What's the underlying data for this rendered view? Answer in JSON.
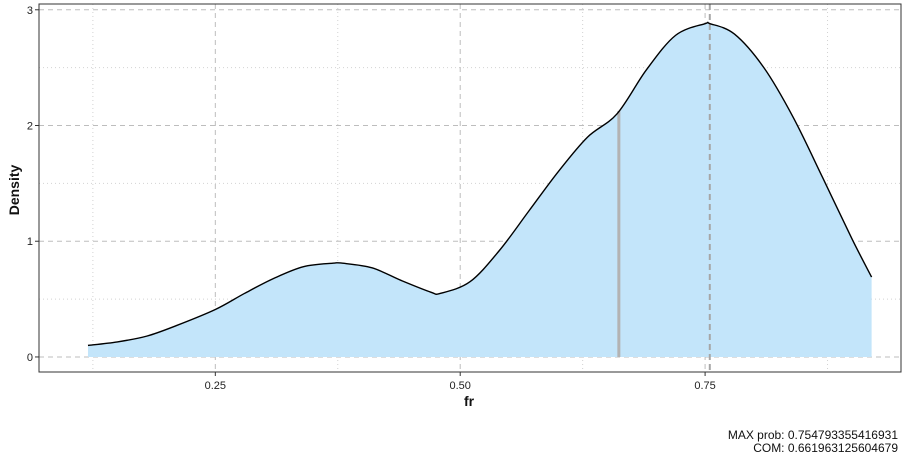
{
  "chart_data": {
    "type": "area",
    "xlabel": "fr",
    "ylabel": "Density",
    "xlim": [
      0.07,
      0.95
    ],
    "ylim": [
      -0.13,
      3.05
    ],
    "x_ticks": [
      0.25,
      0.5,
      0.75
    ],
    "x_tick_labels": [
      "0.25",
      "0.50",
      "0.75"
    ],
    "y_ticks": [
      0,
      1,
      2,
      3
    ],
    "y_tick_labels": [
      "0",
      "1",
      "2",
      "3"
    ],
    "x_minor_ticks": [
      0.125,
      0.375,
      0.625,
      0.875
    ],
    "y_minor_ticks": [
      0.5,
      1.5,
      2.5
    ],
    "grid": true,
    "fill_color": "#c3e5fa",
    "line_color": "#000000",
    "series": [
      {
        "x": [
          0.12,
          0.15,
          0.18,
          0.21,
          0.25,
          0.28,
          0.31,
          0.34,
          0.37,
          0.38,
          0.41,
          0.44,
          0.47,
          0.48,
          0.51,
          0.54,
          0.57,
          0.6,
          0.63,
          0.66,
          0.69,
          0.72,
          0.75,
          0.755,
          0.78,
          0.81,
          0.84,
          0.87,
          0.9,
          0.92
        ],
        "y": [
          0.1,
          0.13,
          0.18,
          0.27,
          0.41,
          0.55,
          0.68,
          0.78,
          0.81,
          0.81,
          0.77,
          0.66,
          0.56,
          0.55,
          0.65,
          0.92,
          1.26,
          1.6,
          1.9,
          2.1,
          2.48,
          2.78,
          2.88,
          2.88,
          2.79,
          2.5,
          2.07,
          1.55,
          1.02,
          0.69
        ]
      }
    ],
    "vertical_lines": [
      {
        "x": 0.754793355416931,
        "style": "dashed",
        "color": "#a6a6a6"
      },
      {
        "x": 0.661963125604679,
        "style": "solid",
        "color": "#b3b3b3"
      }
    ]
  },
  "caption": {
    "max_label": "MAX prob:",
    "max_value": "0.754793355416931",
    "com_label": "COM:",
    "com_value": "0.661963125604679"
  }
}
